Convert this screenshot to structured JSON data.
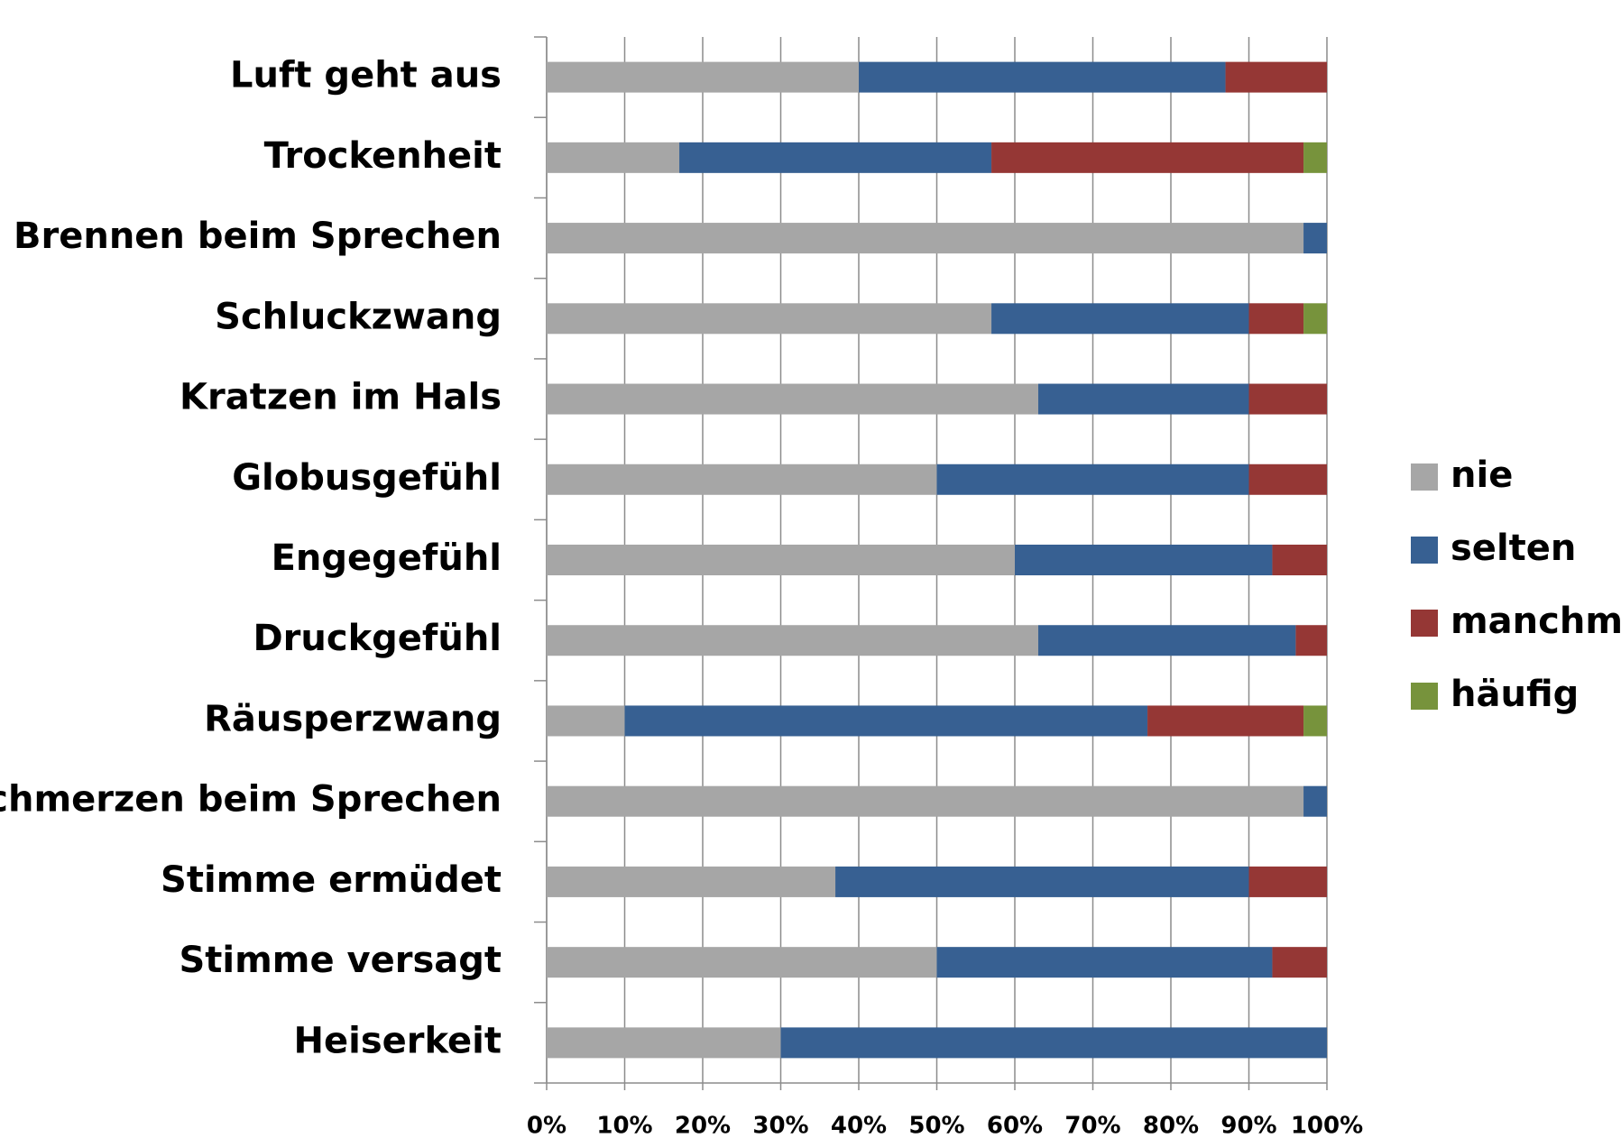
{
  "chart_data": {
    "type": "stacked-barh",
    "categories": [
      "Luft geht aus",
      "Trockenheit",
      "Brennen beim Sprechen",
      "Schluckzwang",
      "Kratzen im Hals",
      "Globusgefühl",
      "Engegefühl",
      "Druckgefühl",
      "Räusperzwang",
      "chmerzen beim Sprechen",
      "Stimme ermüdet",
      "Stimme versagt",
      "Heiserkeit"
    ],
    "series": [
      {
        "name": "nie",
        "color": "#a6a6a6",
        "values": [
          40,
          17,
          97,
          57,
          63,
          50,
          60,
          63,
          10,
          97,
          37,
          50,
          30
        ]
      },
      {
        "name": "selten",
        "color": "#376092",
        "values": [
          47,
          40,
          3,
          33,
          27,
          40,
          33,
          33,
          67,
          3,
          53,
          43,
          70
        ]
      },
      {
        "name": "manchm",
        "color": "#953735",
        "values": [
          13,
          40,
          0,
          7,
          10,
          10,
          7,
          4,
          20,
          0,
          10,
          7,
          0
        ]
      },
      {
        "name": "häufig",
        "color": "#77933c",
        "values": [
          0,
          3,
          0,
          3,
          0,
          0,
          0,
          0,
          3,
          0,
          0,
          0,
          0
        ]
      }
    ],
    "xlim": [
      0,
      100
    ],
    "xticks": [
      {
        "value": 0,
        "label": "0%"
      },
      {
        "value": 10,
        "label": "10%"
      },
      {
        "value": 20,
        "label": "20%"
      },
      {
        "value": 30,
        "label": "30%"
      },
      {
        "value": 40,
        "label": "40%"
      },
      {
        "value": 50,
        "label": "50%"
      },
      {
        "value": 60,
        "label": "60%"
      },
      {
        "value": 70,
        "label": "70%"
      },
      {
        "value": 80,
        "label": "80%"
      },
      {
        "value": 90,
        "label": "90%"
      },
      {
        "value": 100,
        "label": "100%"
      }
    ],
    "grid": true,
    "legend": "right"
  }
}
